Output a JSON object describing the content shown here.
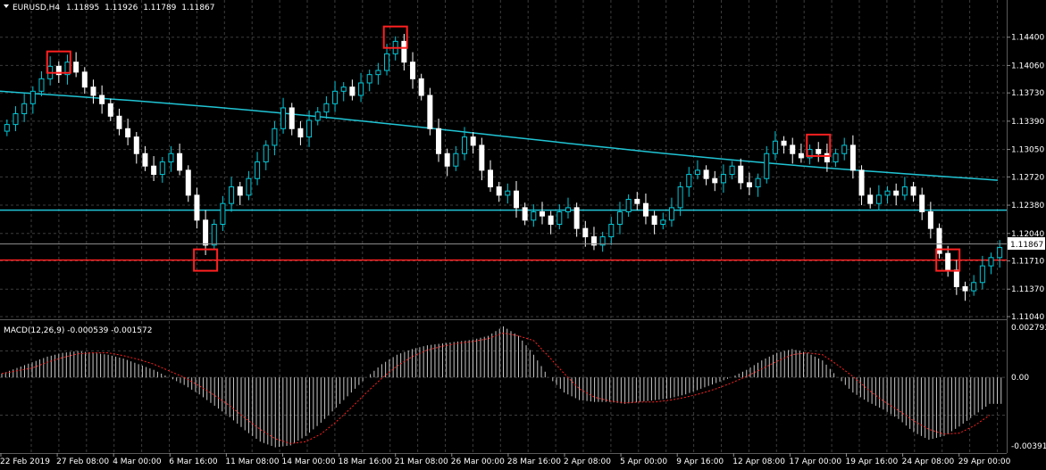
{
  "symbol_info": {
    "symbol": "EURUSD,H4",
    "open": "1.11895",
    "high": "1.11926",
    "low": "1.11789",
    "close": "1.11867"
  },
  "price_axis": {
    "labels": [
      "1.14400",
      "1.14060",
      "1.13730",
      "1.13390",
      "1.13050",
      "1.12720",
      "1.12380",
      "1.12040",
      "1.11710",
      "1.11370",
      "1.11040"
    ],
    "current_price": "1.11867"
  },
  "macd": {
    "header": "MACD(12,26,9) -0.000539 -0.001572",
    "labels": [
      "0.002793",
      "0.00",
      "-0.00391"
    ]
  },
  "time_axis": {
    "labels": [
      "22 Feb 2019",
      "27 Feb 08:00",
      "4 Mar 00:00",
      "6 Mar 16:00",
      "11 Mar 08:00",
      "14 Mar 00:00",
      "18 Mar 16:00",
      "21 Mar 08:00",
      "26 Mar 00:00",
      "28 Mar 16:00",
      "2 Apr 08:00",
      "5 Apr 00:00",
      "9 Apr 16:00",
      "12 Apr 08:00",
      "17 Apr 00:00",
      "19 Apr 16:00",
      "24 Apr 08:00",
      "29 Apr 00:00"
    ]
  },
  "colors": {
    "background": "#000000",
    "grid": "#3c3c3c",
    "bull_candle": "#00c8d8",
    "bear_candle": "#ffffff",
    "moving_average": "#20c4d4",
    "support_cyan": "#20c4d4",
    "support_red": "#ff2020",
    "highlight_box": "#ff2020",
    "macd_histogram": "#c8c8c8",
    "macd_signal": "#ff2020"
  },
  "chart_data": {
    "type": "candlestick",
    "ylim": [
      1.1104,
      1.1474
    ],
    "price_close_series": [
      1.1335,
      1.1348,
      1.136,
      1.1375,
      1.139,
      1.1405,
      1.1395,
      1.141,
      1.1398,
      1.138,
      1.137,
      1.136,
      1.1345,
      1.133,
      1.132,
      1.13,
      1.1285,
      1.1275,
      1.129,
      1.13,
      1.128,
      1.125,
      1.122,
      1.119,
      1.1215,
      1.124,
      1.126,
      1.125,
      1.127,
      1.129,
      1.131,
      1.133,
      1.1355,
      1.133,
      1.132,
      1.134,
      1.135,
      1.136,
      1.1375,
      1.138,
      1.137,
      1.1385,
      1.1395,
      1.14,
      1.142,
      1.1435,
      1.141,
      1.139,
      1.137,
      1.133,
      1.13,
      1.1285,
      1.13,
      1.132,
      1.131,
      1.128,
      1.126,
      1.125,
      1.1255,
      1.1235,
      1.122,
      1.123,
      1.1225,
      1.1215,
      1.123,
      1.1235,
      1.121,
      1.12,
      1.119,
      1.12,
      1.1215,
      1.123,
      1.1245,
      1.124,
      1.1225,
      1.1215,
      1.122,
      1.1235,
      1.126,
      1.1275,
      1.128,
      1.127,
      1.1265,
      1.1275,
      1.1285,
      1.1265,
      1.126,
      1.127,
      1.13,
      1.1315,
      1.131,
      1.13,
      1.1295,
      1.1305,
      1.13,
      1.129,
      1.13,
      1.131,
      1.128,
      1.125,
      1.124,
      1.125,
      1.1255,
      1.125,
      1.126,
      1.125,
      1.123,
      1.121,
      1.118,
      1.116,
      1.114,
      1.1135,
      1.1145,
      1.1165,
      1.1175,
      1.1187
    ],
    "moving_average": {
      "start": 1.1375,
      "end": 1.1268
    },
    "support_lines": [
      1.1232,
      1.1172
    ],
    "highlight_boxes": [
      {
        "time_index": 6,
        "price": 1.141
      },
      {
        "time_index": 23,
        "price": 1.1172
      },
      {
        "time_index": 45,
        "price": 1.144
      },
      {
        "time_index": 94,
        "price": 1.131
      },
      {
        "time_index": 109,
        "price": 1.1172
      }
    ],
    "macd_ylim": [
      -0.00391,
      0.002793
    ],
    "macd_histogram": [
      0.0002,
      0.0005,
      0.0008,
      0.0011,
      0.0013,
      0.0014,
      0.0013,
      0.0012,
      0.001,
      0.0007,
      0.0004,
      0.0,
      -0.0004,
      -0.0009,
      -0.0015,
      -0.0021,
      -0.0028,
      -0.0034,
      -0.0037,
      -0.0036,
      -0.0031,
      -0.0024,
      -0.0016,
      -0.0008,
      0.0,
      0.0007,
      0.0012,
      0.0015,
      0.0017,
      0.0018,
      0.0019,
      0.002,
      0.0022,
      0.0027,
      0.0022,
      0.0012,
      0.0,
      -0.0008,
      -0.0012,
      -0.0013,
      -0.0013,
      -0.0014,
      -0.0013,
      -0.0012,
      -0.0011,
      -0.0009,
      -0.0006,
      -0.0003,
      0.0,
      0.0004,
      0.0009,
      0.0013,
      0.0015,
      0.0013,
      0.0009,
      0.0,
      -0.0008,
      -0.0013,
      -0.0017,
      -0.0022,
      -0.0029,
      -0.0033,
      -0.0031,
      -0.0026,
      -0.002,
      -0.0014
    ]
  }
}
